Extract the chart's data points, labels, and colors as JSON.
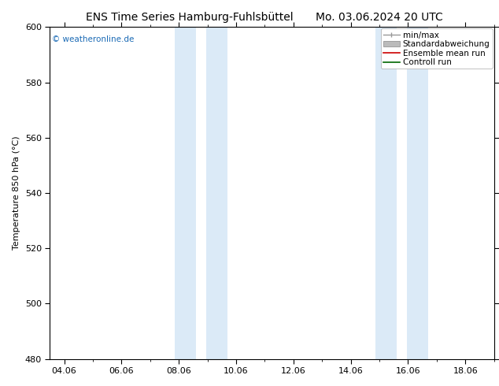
{
  "title_left": "ENS Time Series Hamburg-Fuhlsbüttel",
  "title_right": "Mo. 03.06.2024 20 UTC",
  "ylabel": "Temperature 850 hPa (°C)",
  "ylim": [
    480,
    600
  ],
  "yticks": [
    480,
    500,
    520,
    540,
    560,
    580,
    600
  ],
  "xtick_labels": [
    "04.06",
    "06.06",
    "08.06",
    "10.06",
    "12.06",
    "14.06",
    "16.06",
    "18.06"
  ],
  "xtick_positions": [
    0,
    2,
    4,
    6,
    8,
    10,
    12,
    14
  ],
  "xlim_start": -0.5,
  "xlim_end": 15.0,
  "shade_bands": [
    {
      "xmin": 3.85,
      "xmax": 4.6
    },
    {
      "xmin": 4.95,
      "xmax": 5.7
    },
    {
      "xmin": 10.85,
      "xmax": 11.6
    },
    {
      "xmin": 11.95,
      "xmax": 12.7
    }
  ],
  "shade_color": "#dbeaf7",
  "background_color": "#ffffff",
  "watermark": "© weatheronline.de",
  "watermark_color": "#1a6ab5",
  "legend_items": [
    {
      "label": "min/max",
      "color": "#999999",
      "style": "minmax"
    },
    {
      "label": "Standardabweichung",
      "color": "#bbbbbb",
      "style": "band"
    },
    {
      "label": "Ensemble mean run",
      "color": "#cc0000",
      "style": "line"
    },
    {
      "label": "Controll run",
      "color": "#006600",
      "style": "line"
    }
  ],
  "spine_color": "#000000",
  "title_fontsize": 10,
  "label_fontsize": 8,
  "tick_fontsize": 8,
  "legend_fontsize": 7.5
}
